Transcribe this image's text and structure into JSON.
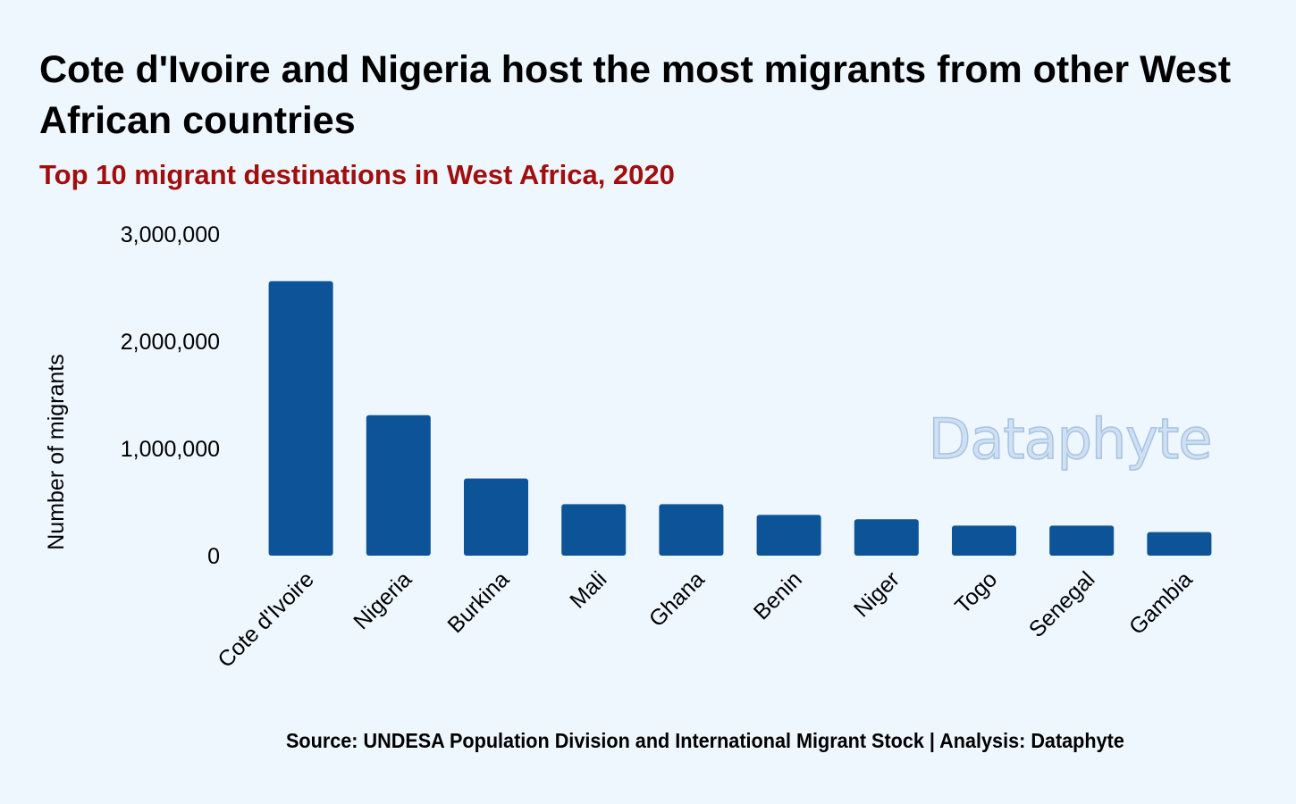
{
  "chart_data": {
    "type": "bar",
    "title": "Cote d'Ivoire and Nigeria host the most migrants from other West African countries",
    "subtitle": "Top 10 migrant destinations in West Africa, 2020",
    "ylabel": "Number of migrants",
    "xlabel": "",
    "categories": [
      "Cote d'Ivoire",
      "Nigeria",
      "Burkina",
      "Mali",
      "Ghana",
      "Benin",
      "Niger",
      "Togo",
      "Senegal",
      "Gambia"
    ],
    "values": [
      2560000,
      1310000,
      720000,
      480000,
      480000,
      380000,
      340000,
      280000,
      280000,
      220000
    ],
    "ylim": [
      0,
      3000000
    ],
    "yticks": [
      0,
      1000000,
      2000000,
      3000000
    ],
    "ytick_labels": [
      "0",
      "1,000,000",
      "2,000,000",
      "3,000,000"
    ],
    "grid": false,
    "legend": "none",
    "bar_color": "#0c5497",
    "caption": "Source: UNDESA Population Division and International Migrant Stock | Analysis: Dataphyte",
    "watermark": "Dataphyte"
  },
  "colors": {
    "background": "#eef6fe",
    "title": "#000000",
    "subtitle": "#a10e0e",
    "bar": "#0c5497"
  }
}
